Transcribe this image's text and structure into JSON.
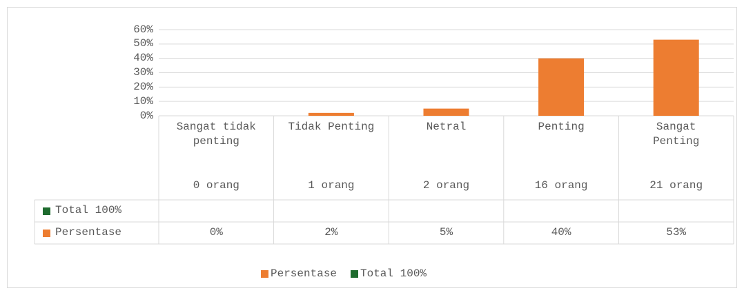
{
  "chart_data": {
    "type": "bar",
    "categories": [
      "Sangat tidak penting",
      "Tidak Penting",
      "Netral",
      "Penting",
      "Sangat Penting"
    ],
    "subcategories": [
      "0 orang",
      "1 orang",
      "2 orang",
      "16 orang",
      "21 orang"
    ],
    "series": [
      {
        "name": "Total 100%",
        "color": "#1e6b2e",
        "values": [
          null,
          null,
          null,
          null,
          null
        ]
      },
      {
        "name": "Persentase",
        "color": "#ed7d31",
        "values": [
          0,
          2,
          5,
          40,
          53
        ],
        "value_labels": [
          "0%",
          "2%",
          "5%",
          "40%",
          "53%"
        ]
      }
    ],
    "legend_order": [
      1,
      0
    ],
    "ylim": [
      0,
      60
    ],
    "yticks": [
      {
        "value": 0,
        "label": "0%"
      },
      {
        "value": 10,
        "label": "10%"
      },
      {
        "value": 20,
        "label": "20%"
      },
      {
        "value": 30,
        "label": "30%"
      },
      {
        "value": 40,
        "label": "40%"
      },
      {
        "value": 50,
        "label": "50%"
      },
      {
        "value": 60,
        "label": "60%"
      }
    ],
    "grid": true
  }
}
